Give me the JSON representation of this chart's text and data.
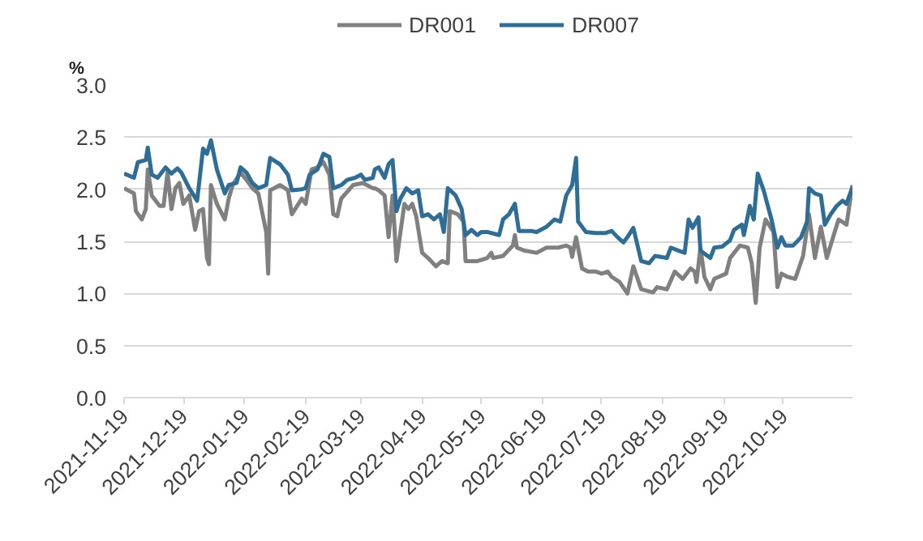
{
  "chart_data": {
    "type": "line",
    "ylabel": "%",
    "xlim": [
      "2021-11-19",
      "2022-11-23"
    ],
    "xticks": [
      {
        "value": "2021-11-19",
        "label": "2021-11-19"
      },
      {
        "value": "2021-12-19",
        "label": "2021-12-19"
      },
      {
        "value": "2022-01-19",
        "label": "2022-01-19"
      },
      {
        "value": "2022-02-19",
        "label": "2022-02-19"
      },
      {
        "value": "2022-03-19",
        "label": "2022-03-19"
      },
      {
        "value": "2022-04-19",
        "label": "2022-04-19"
      },
      {
        "value": "2022-05-19",
        "label": "2022-05-19"
      },
      {
        "value": "2022-06-19",
        "label": "2022-06-19"
      },
      {
        "value": "2022-07-19",
        "label": "2022-07-19"
      },
      {
        "value": "2022-08-19",
        "label": "2022-08-19"
      },
      {
        "value": "2022-09-19",
        "label": "2022-09-19"
      },
      {
        "value": "2022-10-19",
        "label": "2022-10-19"
      }
    ],
    "ylim": [
      0,
      3
    ],
    "yticks": [
      {
        "value": 0,
        "label": "0.0"
      },
      {
        "value": 0.5,
        "label": "0.5"
      },
      {
        "value": 1,
        "label": "1.0"
      },
      {
        "value": 1.5,
        "label": "1.5"
      },
      {
        "value": 2,
        "label": "2.0"
      },
      {
        "value": 2.5,
        "label": "2.5"
      },
      {
        "value": 3,
        "label": "3.0"
      }
    ],
    "grid": "y",
    "legend": "top",
    "marker": "none",
    "line_style": "solid",
    "series": [
      {
        "name": "DR001",
        "color": "#808080",
        "x": [
          "2021-11-19",
          "2021-11-24",
          "2021-11-25",
          "2021-11-28",
          "2021-11-30",
          "2021-12-01",
          "2021-12-03",
          "2021-12-07",
          "2021-12-09",
          "2021-12-11",
          "2021-12-13",
          "2021-12-15",
          "2021-12-17",
          "2021-12-19",
          "2021-12-22",
          "2021-12-25",
          "2021-12-27",
          "2021-12-29",
          "2021-12-31",
          "2022-01-01",
          "2022-01-02",
          "2022-01-05",
          "2022-01-09",
          "2022-01-11",
          "2022-01-13",
          "2022-01-17",
          "2022-01-20",
          "2022-01-23",
          "2022-01-26",
          "2022-01-30",
          "2022-01-31",
          "2022-02-01",
          "2022-02-06",
          "2022-02-10",
          "2022-02-12",
          "2022-02-17",
          "2022-02-19",
          "2022-02-22",
          "2022-02-25",
          "2022-02-28",
          "2022-03-03",
          "2022-03-05",
          "2022-03-07",
          "2022-03-09",
          "2022-03-15",
          "2022-03-20",
          "2022-03-25",
          "2022-03-26",
          "2022-03-28",
          "2022-03-31",
          "2022-04-02",
          "2022-04-04",
          "2022-04-06",
          "2022-04-10",
          "2022-04-12",
          "2022-04-14",
          "2022-04-16",
          "2022-04-19",
          "2022-04-22",
          "2022-04-26",
          "2022-04-29",
          "2022-05-02",
          "2022-05-03",
          "2022-05-07",
          "2022-05-10",
          "2022-05-11",
          "2022-05-17",
          "2022-05-22",
          "2022-05-24",
          "2022-05-25",
          "2022-05-30",
          "2022-06-04",
          "2022-06-05",
          "2022-06-06",
          "2022-06-10",
          "2022-06-16",
          "2022-06-21",
          "2022-06-27",
          "2022-07-01",
          "2022-07-03",
          "2022-07-04",
          "2022-07-06",
          "2022-07-09",
          "2022-07-12",
          "2022-07-16",
          "2022-07-19",
          "2022-07-22",
          "2022-07-24",
          "2022-07-28",
          "2022-08-01",
          "2022-08-04",
          "2022-08-08",
          "2022-08-14",
          "2022-08-16",
          "2022-08-21",
          "2022-08-25",
          "2022-08-29",
          "2022-09-02",
          "2022-09-04",
          "2022-09-05",
          "2022-09-07",
          "2022-09-09",
          "2022-09-12",
          "2022-09-14",
          "2022-09-20",
          "2022-09-22",
          "2022-09-27",
          "2022-10-01",
          "2022-10-03",
          "2022-10-05",
          "2022-10-07",
          "2022-10-10",
          "2022-10-14",
          "2022-10-16",
          "2022-10-18",
          "2022-10-21",
          "2022-10-25",
          "2022-10-29",
          "2022-11-01",
          "2022-11-04",
          "2022-11-07",
          "2022-11-10",
          "2022-11-14",
          "2022-11-16",
          "2022-11-20",
          "2022-11-23"
        ],
        "values": [
          2.01,
          1.96,
          1.79,
          1.71,
          1.81,
          2.19,
          1.94,
          1.84,
          1.84,
          2.16,
          1.81,
          2.01,
          2.06,
          1.86,
          1.94,
          1.61,
          1.79,
          1.81,
          1.34,
          1.28,
          2.04,
          1.86,
          1.71,
          1.91,
          2.04,
          2.16,
          2.09,
          2.01,
          1.96,
          1.59,
          1.19,
          1.99,
          2.04,
          1.99,
          1.76,
          1.91,
          1.86,
          2.19,
          2.21,
          2.26,
          2.14,
          1.76,
          1.74,
          1.91,
          2.04,
          2.06,
          2.01,
          2.01,
          1.99,
          1.94,
          1.54,
          1.94,
          1.31,
          1.86,
          1.81,
          1.86,
          1.74,
          1.39,
          1.34,
          1.26,
          1.31,
          1.29,
          1.79,
          1.76,
          1.69,
          1.31,
          1.31,
          1.34,
          1.39,
          1.34,
          1.36,
          1.46,
          1.56,
          1.44,
          1.41,
          1.39,
          1.44,
          1.44,
          1.46,
          1.44,
          1.35,
          1.54,
          1.24,
          1.21,
          1.21,
          1.19,
          1.21,
          1.16,
          1.11,
          1.0,
          1.26,
          1.04,
          1.01,
          1.06,
          1.04,
          1.21,
          1.14,
          1.24,
          1.21,
          1.11,
          1.44,
          1.16,
          1.04,
          1.14,
          1.19,
          1.34,
          1.46,
          1.44,
          1.29,
          0.91,
          1.44,
          1.71,
          1.59,
          1.06,
          1.19,
          1.16,
          1.14,
          1.36,
          1.76,
          1.34,
          1.64,
          1.34,
          1.59,
          1.71,
          1.66,
          2.04
        ]
      },
      {
        "name": "DR007",
        "color": "#2e6e96",
        "x": [
          "2021-11-19",
          "2021-11-24",
          "2021-11-26",
          "2021-11-30",
          "2021-12-01",
          "2021-12-03",
          "2021-12-06",
          "2021-12-10",
          "2021-12-13",
          "2021-12-16",
          "2021-12-18",
          "2021-12-22",
          "2021-12-26",
          "2021-12-29",
          "2021-12-31",
          "2022-01-02",
          "2022-01-05",
          "2022-01-09",
          "2022-01-11",
          "2022-01-15",
          "2022-01-17",
          "2022-01-20",
          "2022-01-23",
          "2022-01-26",
          "2022-01-30",
          "2022-02-01",
          "2022-02-06",
          "2022-02-10",
          "2022-02-12",
          "2022-02-17",
          "2022-02-19",
          "2022-02-21",
          "2022-02-25",
          "2022-02-28",
          "2022-03-03",
          "2022-03-05",
          "2022-03-09",
          "2022-03-12",
          "2022-03-16",
          "2022-03-19",
          "2022-03-21",
          "2022-03-25",
          "2022-03-26",
          "2022-03-28",
          "2022-03-31",
          "2022-04-02",
          "2022-04-04",
          "2022-04-06",
          "2022-04-08",
          "2022-04-11",
          "2022-04-14",
          "2022-04-17",
          "2022-04-19",
          "2022-04-22",
          "2022-04-25",
          "2022-04-28",
          "2022-04-30",
          "2022-05-02",
          "2022-05-06",
          "2022-05-09",
          "2022-05-11",
          "2022-05-14",
          "2022-05-17",
          "2022-05-19",
          "2022-05-22",
          "2022-05-28",
          "2022-05-30",
          "2022-06-02",
          "2022-06-05",
          "2022-06-07",
          "2022-06-13",
          "2022-06-16",
          "2022-06-21",
          "2022-06-25",
          "2022-06-28",
          "2022-07-01",
          "2022-07-04",
          "2022-07-06",
          "2022-07-07",
          "2022-07-11",
          "2022-07-16",
          "2022-07-21",
          "2022-07-24",
          "2022-07-27",
          "2022-07-30",
          "2022-08-01",
          "2022-08-04",
          "2022-08-08",
          "2022-08-12",
          "2022-08-15",
          "2022-08-21",
          "2022-08-23",
          "2022-08-27",
          "2022-08-30",
          "2022-09-01",
          "2022-09-03",
          "2022-09-06",
          "2022-09-07",
          "2022-09-12",
          "2022-09-14",
          "2022-09-18",
          "2022-09-22",
          "2022-09-24",
          "2022-09-28",
          "2022-09-29",
          "2022-10-02",
          "2022-10-04",
          "2022-10-06",
          "2022-10-09",
          "2022-10-13",
          "2022-10-16",
          "2022-10-18",
          "2022-10-20",
          "2022-10-24",
          "2022-10-28",
          "2022-10-31",
          "2022-11-01",
          "2022-11-04",
          "2022-11-07",
          "2022-11-09",
          "2022-11-12",
          "2022-11-15",
          "2022-11-18",
          "2022-11-20",
          "2022-11-23"
        ],
        "values": [
          2.15,
          2.11,
          2.26,
          2.28,
          2.4,
          2.14,
          2.11,
          2.21,
          2.15,
          2.2,
          2.16,
          2.01,
          1.89,
          2.39,
          2.34,
          2.47,
          2.19,
          1.96,
          2.04,
          2.06,
          2.21,
          2.16,
          2.06,
          2.01,
          2.04,
          2.3,
          2.24,
          2.14,
          1.99,
          2.0,
          2.01,
          2.14,
          2.19,
          2.34,
          2.31,
          2.01,
          2.04,
          2.09,
          2.11,
          2.14,
          2.09,
          2.11,
          2.19,
          2.21,
          2.11,
          2.24,
          2.28,
          1.79,
          1.91,
          2.01,
          1.96,
          1.99,
          1.74,
          1.76,
          1.71,
          1.76,
          1.59,
          2.01,
          1.94,
          1.81,
          1.56,
          1.61,
          1.56,
          1.59,
          1.59,
          1.56,
          1.71,
          1.76,
          1.86,
          1.6,
          1.6,
          1.59,
          1.64,
          1.71,
          1.69,
          1.94,
          2.04,
          2.3,
          1.69,
          1.59,
          1.58,
          1.58,
          1.6,
          1.54,
          1.49,
          1.54,
          1.63,
          1.31,
          1.29,
          1.36,
          1.34,
          1.44,
          1.41,
          1.39,
          1.71,
          1.63,
          1.73,
          1.41,
          1.34,
          1.44,
          1.45,
          1.51,
          1.61,
          1.66,
          1.56,
          1.84,
          1.71,
          2.15,
          1.99,
          1.71,
          1.44,
          1.54,
          1.46,
          1.46,
          1.54,
          1.69,
          2.01,
          1.96,
          1.94,
          1.66,
          1.76,
          1.84,
          1.89,
          1.86,
          2.02
        ]
      }
    ]
  }
}
